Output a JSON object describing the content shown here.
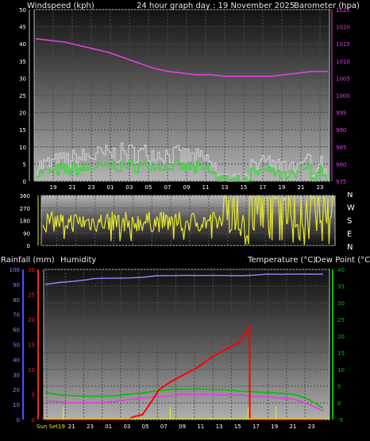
{
  "header": {
    "wind_label": "Windspeed (kph)",
    "graph_title": "24 hour graph day : 19 November 2025",
    "baro_label": "Barometer (hpa)"
  },
  "bottom_header": {
    "rain_label": "Rainfall (mm)",
    "humidity_label": "Humidity",
    "temp_label": "Temperature (°C)",
    "dew_label": "Dew Point (°C)"
  },
  "compass": {
    "labels": [
      "N",
      "W",
      "S",
      "E",
      "N"
    ]
  },
  "colors": {
    "wind_gust": "#c8c8c8",
    "wind_avg": "#3fd63f",
    "barometer": "#e040e0",
    "direction": "#e6e62a",
    "rainfall": "#ff0000",
    "rain_rate": "#e6e62a",
    "humidity": "#8c8cff",
    "temperature": "#00c000",
    "dew_point": "#e040e0",
    "axis_blue": "#5050ff",
    "axis_red": "#ff2020",
    "axis_green": "#00c000"
  },
  "chart_data": [
    {
      "type": "line",
      "name_id": "wind-barometer",
      "x_ticks": [
        "19",
        "21",
        "23",
        "01",
        "03",
        "05",
        "07",
        "09",
        "11",
        "13",
        "15",
        "17",
        "19",
        "21",
        "23"
      ],
      "left_axis": {
        "ticks": [
          0,
          5,
          10,
          15,
          20,
          25,
          30,
          35,
          40,
          45,
          50
        ],
        "ylim": [
          0,
          50
        ]
      },
      "right_axis": {
        "ticks": [
          975,
          980,
          985,
          990,
          995,
          1000,
          1005,
          1010,
          1015,
          1020,
          1025
        ],
        "ylim": [
          975,
          1025
        ]
      },
      "series": [
        {
          "key": "barometer",
          "axis": "right",
          "points": [
            [
              0,
              1016.5
            ],
            [
              1,
              1016.0
            ],
            [
              2,
              1015.5
            ],
            [
              3,
              1014.5
            ],
            [
              4,
              1013.5
            ],
            [
              5,
              1012.5
            ],
            [
              6,
              1011.0
            ],
            [
              7,
              1009.5
            ],
            [
              8,
              1008.0
            ],
            [
              9,
              1007.0
            ],
            [
              10,
              1006.5
            ],
            [
              11,
              1006.0
            ],
            [
              12,
              1006.0
            ],
            [
              13,
              1005.5
            ],
            [
              14,
              1005.5
            ],
            [
              15,
              1005.5
            ],
            [
              16,
              1005.5
            ],
            [
              17,
              1006.0
            ],
            [
              18,
              1006.5
            ],
            [
              19,
              1007.0
            ],
            [
              20,
              1007.0
            ]
          ]
        }
      ]
    },
    {
      "type": "line",
      "name_id": "wind-direction",
      "x_ticks": [
        "19",
        "21",
        "23",
        "01",
        "03",
        "05",
        "07",
        "09",
        "11",
        "13",
        "15",
        "17",
        "19",
        "21",
        "23"
      ],
      "left_axis": {
        "ticks": [
          0,
          90,
          180,
          270,
          360
        ],
        "ylim": [
          0,
          360
        ]
      }
    },
    {
      "type": "line",
      "name_id": "rain-temp-humidity",
      "x_ticks": [
        "Sun Set19",
        "21",
        "23",
        "01",
        "03",
        "05",
        "07",
        "09",
        "11",
        "13",
        "15",
        "17",
        "19",
        "21",
        "23"
      ],
      "humidity_axis": {
        "ticks": [
          0,
          10,
          20,
          30,
          40,
          50,
          60,
          70,
          80,
          90,
          100
        ],
        "ylim": [
          0,
          100
        ]
      },
      "rain_axis": {
        "ticks": [
          0,
          5,
          10,
          15,
          20,
          25,
          30
        ],
        "ylim": [
          0,
          30
        ]
      },
      "temp_axis": {
        "ticks": [
          -5,
          0,
          5,
          10,
          15,
          20,
          25,
          30,
          35,
          40
        ],
        "ylim": [
          -5,
          40
        ]
      },
      "series": [
        {
          "key": "humidity",
          "axis": "humidity",
          "points": [
            [
              0,
              90
            ],
            [
              1,
              91
            ],
            [
              2,
              92
            ],
            [
              3,
              93
            ],
            [
              3.5,
              94
            ],
            [
              4,
              94
            ],
            [
              6,
              94
            ],
            [
              7,
              95
            ],
            [
              8,
              96
            ],
            [
              9,
              96
            ],
            [
              10,
              96
            ],
            [
              11,
              96
            ],
            [
              12,
              96
            ],
            [
              13,
              96
            ],
            [
              14,
              96
            ],
            [
              15,
              96
            ],
            [
              16,
              97
            ],
            [
              17,
              97
            ],
            [
              18,
              97
            ],
            [
              19,
              97
            ],
            [
              20,
              97
            ]
          ]
        },
        {
          "key": "temperature",
          "axis": "temp",
          "points": [
            [
              0,
              3.2
            ],
            [
              1,
              2.5
            ],
            [
              2,
              2.0
            ],
            [
              3,
              2.0
            ],
            [
              4,
              2.0
            ],
            [
              5,
              2.2
            ],
            [
              6,
              2.5
            ],
            [
              7,
              3.0
            ],
            [
              8,
              3.5
            ],
            [
              9,
              4.0
            ],
            [
              10,
              4.0
            ],
            [
              11,
              4.0
            ],
            [
              12,
              4.0
            ],
            [
              13,
              3.8
            ],
            [
              14,
              3.5
            ],
            [
              15,
              3.2
            ],
            [
              16,
              3.0
            ],
            [
              17,
              2.8
            ],
            [
              18,
              2.5
            ],
            [
              19,
              1.0
            ],
            [
              20,
              -1.5
            ]
          ]
        },
        {
          "key": "dew_point",
          "axis": "temp",
          "points": [
            [
              0,
              0.5
            ],
            [
              1,
              0.2
            ],
            [
              2,
              0.0
            ],
            [
              3,
              0.0
            ],
            [
              4,
              0.2
            ],
            [
              5,
              0.5
            ],
            [
              6,
              1.0
            ],
            [
              7,
              1.5
            ],
            [
              8,
              2.0
            ],
            [
              9,
              2.2
            ],
            [
              10,
              2.5
            ],
            [
              11,
              2.5
            ],
            [
              12,
              2.5
            ],
            [
              13,
              2.5
            ],
            [
              14,
              2.3
            ],
            [
              15,
              2.0
            ],
            [
              16,
              1.8
            ],
            [
              17,
              1.5
            ],
            [
              18,
              1.0
            ],
            [
              19,
              -0.5
            ],
            [
              20,
              -2.5
            ]
          ]
        },
        {
          "key": "rainfall",
          "axis": "rain",
          "points": [
            [
              0,
              0
            ],
            [
              5,
              0
            ],
            [
              6,
              0
            ],
            [
              6.3,
              0.5
            ],
            [
              7,
              1.0
            ],
            [
              7.5,
              3.0
            ],
            [
              8.2,
              6.0
            ],
            [
              9,
              7.5
            ],
            [
              10,
              9.0
            ],
            [
              11,
              10.5
            ],
            [
              12,
              12.5
            ],
            [
              13,
              14.0
            ],
            [
              14,
              15.5
            ],
            [
              14.7,
              18.5
            ],
            [
              14.72,
              0
            ],
            [
              17,
              0
            ],
            [
              18,
              0
            ],
            [
              19,
              0
            ],
            [
              20,
              0
            ]
          ]
        }
      ]
    }
  ]
}
